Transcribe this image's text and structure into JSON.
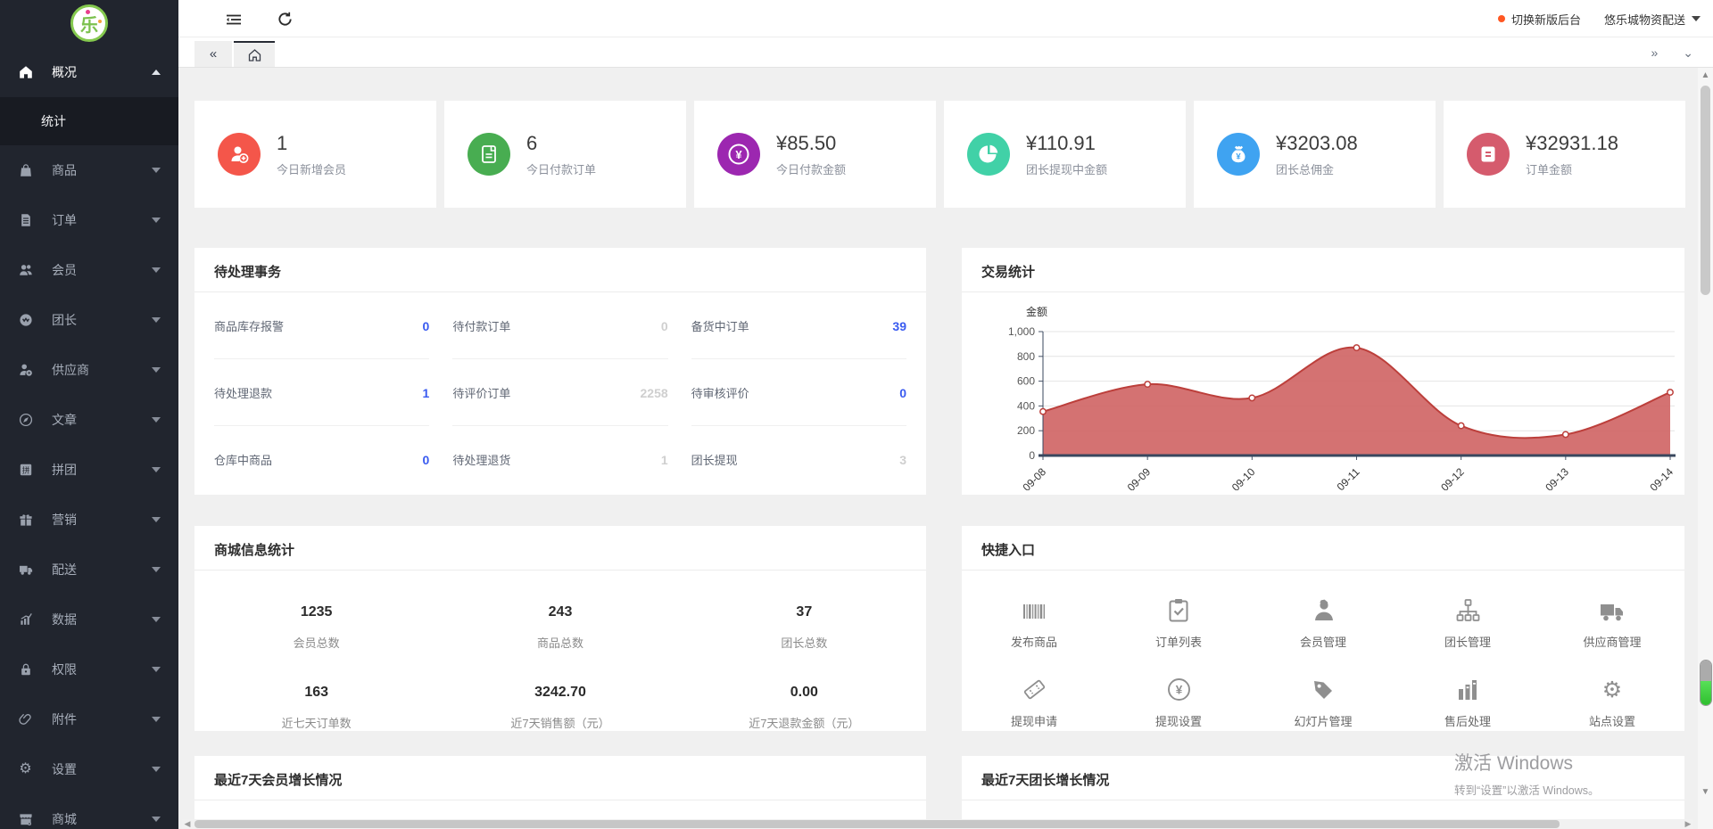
{
  "brand": {
    "logo_char": "乐"
  },
  "header": {
    "switch_new_admin": "切换新版后台",
    "account_name": "悠乐城物资配送",
    "accent_orange": "#ff5722"
  },
  "sidebar": {
    "items": [
      {
        "label": "概况",
        "icon": "home-icon",
        "expanded": true
      },
      {
        "label": "商品",
        "icon": "bag-icon"
      },
      {
        "label": "订单",
        "icon": "file-icon"
      },
      {
        "label": "会员",
        "icon": "users-icon"
      },
      {
        "label": "团长",
        "icon": "leader-icon"
      },
      {
        "label": "供应商",
        "icon": "supplier-icon"
      },
      {
        "label": "文章",
        "icon": "compass-icon"
      },
      {
        "label": "拼团",
        "icon": "pin-icon"
      },
      {
        "label": "营销",
        "icon": "gift-icon"
      },
      {
        "label": "配送",
        "icon": "truck-icon"
      },
      {
        "label": "数据",
        "icon": "chart-icon"
      },
      {
        "label": "权限",
        "icon": "lock-icon"
      },
      {
        "label": "附件",
        "icon": "paperclip-icon"
      },
      {
        "label": "设置",
        "icon": "gear-icon"
      },
      {
        "label": "商城",
        "icon": "store-icon"
      }
    ],
    "submenu_active": "统计",
    "pin_glyph": "拼"
  },
  "cards": [
    {
      "value": "1",
      "label": "今日新增会员",
      "color": "#f4564a",
      "icon": "user-add-icon"
    },
    {
      "value": "6",
      "label": "今日付款订单",
      "color": "#48ad51",
      "icon": "document-icon"
    },
    {
      "value": "¥85.50",
      "label": "今日付款金额",
      "color": "#9c27b0",
      "icon": "yen-ring-icon"
    },
    {
      "value": "¥110.91",
      "label": "团长提现中金额",
      "color": "#41d1a7",
      "icon": "pie-icon"
    },
    {
      "value": "¥3203.08",
      "label": "团长总佣金",
      "color": "#3fa3f1",
      "icon": "moneybag-icon"
    },
    {
      "value": "¥32931.18",
      "label": "订单金额",
      "color": "#d55b6d",
      "icon": "list-card-icon"
    }
  ],
  "pending": {
    "title": "待处理事务",
    "cells": [
      {
        "label": "商品库存报警",
        "value": "0",
        "tone": "link"
      },
      {
        "label": "待付款订单",
        "value": "0",
        "tone": "muted"
      },
      {
        "label": "备货中订单",
        "value": "39",
        "tone": "link"
      },
      {
        "label": "待处理退款",
        "value": "1",
        "tone": "link"
      },
      {
        "label": "待评价订单",
        "value": "2258",
        "tone": "muted"
      },
      {
        "label": "待审核评价",
        "value": "0",
        "tone": "link"
      },
      {
        "label": "仓库中商品",
        "value": "0",
        "tone": "link"
      },
      {
        "label": "待处理退货",
        "value": "1",
        "tone": "muted"
      },
      {
        "label": "团长提现",
        "value": "3",
        "tone": "muted"
      }
    ],
    "link_color": "#3a5bf0"
  },
  "trade": {
    "title": "交易统计",
    "legend": "金额"
  },
  "chart_data": {
    "type": "area",
    "title": "交易统计",
    "legend": [
      "金额"
    ],
    "x": [
      "09-08",
      "09-09",
      "09-10",
      "09-11",
      "09-12",
      "09-13",
      "09-14"
    ],
    "series": [
      {
        "name": "金额",
        "values": [
          355,
          575,
          465,
          870,
          240,
          170,
          510
        ]
      }
    ],
    "ylim": [
      0,
      1000
    ],
    "yticks": [
      "0",
      "200",
      "400",
      "600",
      "800",
      "1,000"
    ],
    "ylabel": "金额",
    "grid": true,
    "legend_position": "top-left",
    "smooth": true,
    "colors": {
      "line": "#bc3f3b",
      "fill": "#ce5f5e",
      "axis": "#39475e"
    }
  },
  "mall": {
    "title": "商城信息统计",
    "stats": [
      {
        "value": "1235",
        "label": "会员总数"
      },
      {
        "value": "243",
        "label": "商品总数"
      },
      {
        "value": "37",
        "label": "团长总数"
      },
      {
        "value": "163",
        "label": "近七天订单数"
      },
      {
        "value": "3242.70",
        "label": "近7天销售额（元）"
      },
      {
        "value": "0.00",
        "label": "近7天退款金额（元）"
      }
    ]
  },
  "quick": {
    "title": "快捷入口",
    "entries": [
      {
        "label": "发布商品",
        "icon": "barcode-icon"
      },
      {
        "label": "订单列表",
        "icon": "clipboard-check-icon"
      },
      {
        "label": "会员管理",
        "icon": "member-icon"
      },
      {
        "label": "团长管理",
        "icon": "sitemap-icon"
      },
      {
        "label": "供应商管理",
        "icon": "truck-icon"
      },
      {
        "label": "提现申请",
        "icon": "ticket-icon"
      },
      {
        "label": "提现设置",
        "icon": "yen-circle-icon"
      },
      {
        "label": "幻灯片管理",
        "icon": "tag-icon"
      },
      {
        "label": "售后处理",
        "icon": "bars-icon"
      },
      {
        "label": "站点设置",
        "icon": "gear-icon"
      }
    ]
  },
  "bottom": {
    "left_title": "最近7天会员增长情况",
    "right_title": "最近7天团长增长情况"
  },
  "watermark": {
    "line1": "激活 Windows",
    "line2": "转到“设置”以激活 Windows。"
  }
}
